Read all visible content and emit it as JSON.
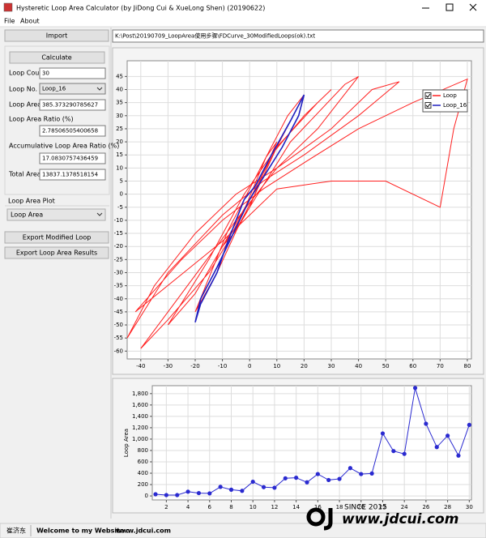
{
  "window": {
    "title": "Hysteretic Loop Area Calculator (by JiDong Cui & XueLong Shen) (20190622)",
    "menu": [
      "File",
      "About"
    ]
  },
  "left_panel": {
    "import_button": "Import",
    "calculate_button": "Calculate",
    "fields": [
      {
        "label": "Loop Count",
        "value": "30"
      },
      {
        "label": "Loop No.",
        "value": "Loop_16"
      },
      {
        "label": "Loop Area",
        "value": "385.373290785627"
      },
      {
        "label": "Loop Area Ratio (%)",
        "value": "2.78506505400658"
      },
      {
        "label": "Accumulative Loop Area Ratio (%)",
        "value": "17.0830757436459"
      },
      {
        "label": "Total Area",
        "value": "13837.1378518154"
      }
    ],
    "plot_group": "Loop Area Plot",
    "plot_select": "Loop Area",
    "buttons": [
      "Export Modified Loop",
      "Export Loop Area Results"
    ]
  },
  "file_path": "K:\\Post\\20190709_LoopArea使用步骤\\FDCurve_30ModifiedLoops(ok).txt",
  "chart_data": [
    {
      "type": "line",
      "grid": true,
      "legend": "upper right",
      "xlim": [
        -45,
        81.5
      ],
      "ylim": [
        -63,
        51
      ],
      "xticks": [
        -40,
        -30,
        -20,
        -10,
        0,
        10,
        20,
        30,
        40,
        50,
        60,
        70,
        80
      ],
      "yticks": [
        -60,
        -55,
        -50,
        -45,
        -40,
        -35,
        -30,
        -25,
        -20,
        -15,
        -10,
        -5,
        0,
        5,
        10,
        15,
        20,
        25,
        30,
        35,
        40,
        45
      ],
      "series": [
        {
          "name": "Loop",
          "color": "#ff2020",
          "x": [
            -10,
            -5,
            0,
            5,
            10,
            6,
            2,
            -2,
            -6,
            -10,
            null,
            -20,
            -12,
            -4,
            2,
            10,
            20,
            14,
            6,
            0,
            -8,
            -20,
            null,
            -30,
            -20,
            -10,
            0,
            10,
            25,
            30,
            20,
            8,
            -2,
            -15,
            -30,
            null,
            -45,
            -35,
            -20,
            -5,
            10,
            30,
            45,
            55,
            40,
            20,
            5,
            -10,
            -30,
            -45,
            null,
            -42,
            -25,
            -10,
            5,
            20,
            40,
            60,
            80,
            75,
            70,
            50,
            30,
            10,
            -10,
            -42,
            null,
            -40,
            -30,
            -15,
            0,
            15,
            35,
            40,
            25,
            10,
            -5,
            -25,
            -40
          ],
          "values": [
            -20,
            -14,
            -5,
            8,
            20,
            14,
            4,
            -6,
            -14,
            -20,
            null,
            -45,
            -30,
            -12,
            0,
            18,
            38,
            30,
            14,
            2,
            -14,
            -45,
            null,
            -50,
            -38,
            -20,
            -2,
            18,
            35,
            40,
            30,
            15,
            0,
            -25,
            -50,
            null,
            -55,
            -35,
            -15,
            0,
            10,
            25,
            40,
            43,
            30,
            15,
            5,
            -8,
            -30,
            -55,
            null,
            -45,
            -25,
            -10,
            2,
            12,
            25,
            35,
            44,
            25,
            -5,
            5,
            5,
            2,
            -18,
            -45,
            null,
            -59,
            -48,
            -30,
            -5,
            20,
            42,
            45,
            25,
            10,
            -10,
            -38,
            -59
          ]
        },
        {
          "name": "Loop_16",
          "color": "#2020c0",
          "x": [
            -20,
            -18,
            -12,
            -8,
            -2,
            2,
            8,
            15,
            20,
            18,
            12,
            6,
            0,
            -6,
            -12,
            -18,
            -20
          ],
          "values": [
            -49,
            -42,
            -30,
            -18,
            -2,
            3,
            15,
            28,
            38,
            30,
            18,
            8,
            -2,
            -15,
            -28,
            -40,
            -49
          ]
        }
      ]
    },
    {
      "type": "line",
      "grid": true,
      "markers": true,
      "y_label": "Loop Area",
      "xlim": [
        0.7,
        30.2
      ],
      "ylim": [
        -70,
        1940
      ],
      "xticks": [
        2,
        4,
        6,
        8,
        10,
        12,
        14,
        16,
        18,
        20,
        22,
        24,
        26,
        28,
        30
      ],
      "yticks": [
        0,
        200,
        400,
        600,
        800,
        {
          "value": 1000,
          "label": "1,000"
        },
        {
          "value": 1200,
          "label": "1,200"
        },
        {
          "value": 1400,
          "label": "1,400"
        },
        {
          "value": 1600,
          "label": "1,600"
        },
        {
          "value": 1800,
          "label": "1,800"
        }
      ],
      "series": [
        {
          "color": "#2a2ad0",
          "x": [
            1,
            2,
            3,
            4,
            5,
            6,
            7,
            8,
            9,
            10,
            11,
            12,
            13,
            14,
            15,
            16,
            17,
            18,
            19,
            20,
            21,
            22,
            23,
            24,
            25,
            26,
            27,
            28,
            29,
            30
          ],
          "values": [
            30,
            15,
            15,
            75,
            50,
            45,
            160,
            110,
            90,
            250,
            155,
            145,
            310,
            320,
            240,
            385,
            280,
            300,
            490,
            385,
            395,
            1100,
            790,
            740,
            1900,
            1270,
            860,
            1060,
            710,
            1250
          ]
        }
      ]
    }
  ],
  "watermark": {
    "since": "SINCE 2015",
    "url": "www.jdcui.com"
  },
  "status_bar": [
    "崔济东",
    "Welcome to my Website :",
    "www.jdcui.com"
  ]
}
